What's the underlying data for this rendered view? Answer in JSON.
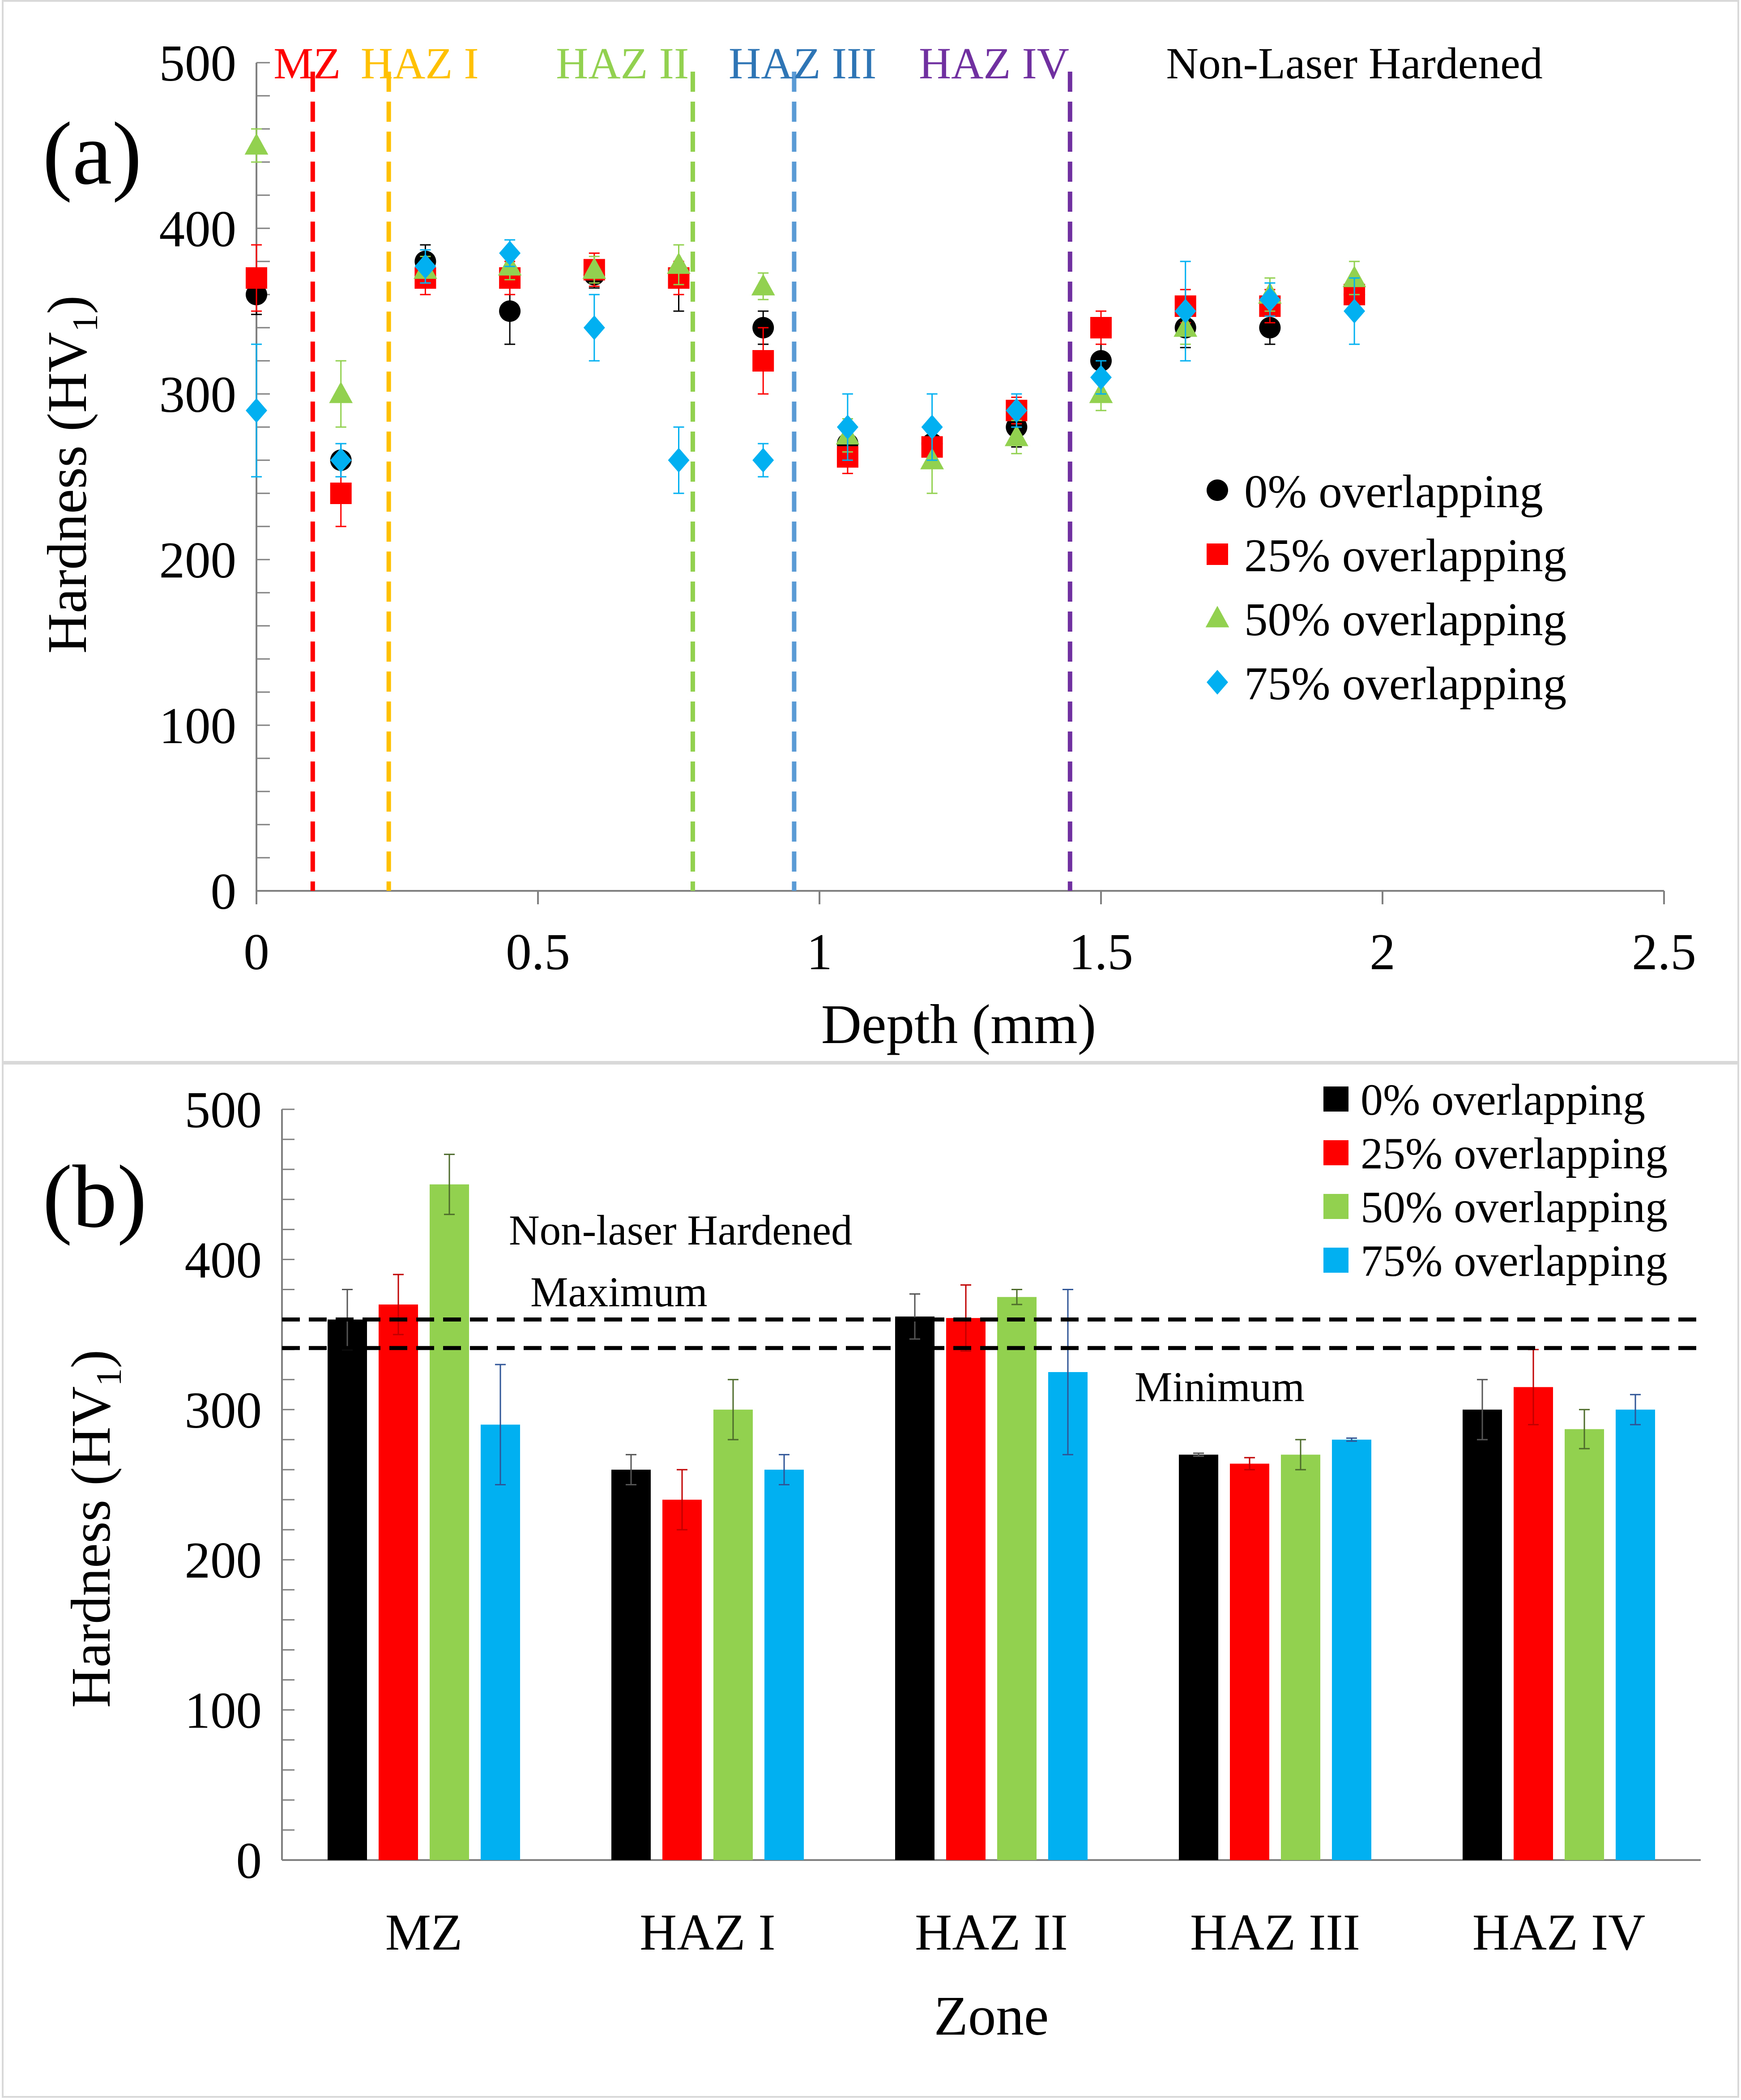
{
  "figure": {
    "panel_a_label": "(a)",
    "panel_b_label": "(b)"
  },
  "chart_data": [
    {
      "type": "scatter",
      "panel": "(a)",
      "title": "",
      "xlabel": "Depth (mm)",
      "ylabel": "Hardness (HV",
      "ylabel_sub": "1",
      "ylabel_close": ")",
      "xlim": [
        0,
        2.5
      ],
      "ylim": [
        0,
        500
      ],
      "xticks": [
        0,
        0.5,
        1,
        1.5,
        2,
        2.5
      ],
      "xtick_labels": [
        "0",
        "0.5",
        "1",
        "1.5",
        "2",
        "2.5"
      ],
      "yticks": [
        0,
        100,
        200,
        300,
        400,
        500
      ],
      "ytick_labels": [
        "0",
        "100",
        "200",
        "300",
        "400",
        "500"
      ],
      "grid": false,
      "legend_position": "right-middle",
      "zone_boundaries": [
        {
          "label": "MZ",
          "x": 0.1,
          "color": "#ff0000"
        },
        {
          "label": "HAZ I",
          "x": 0.235,
          "color": "#ffc000"
        },
        {
          "label": "HAZ II",
          "x": 0.775,
          "color": "#92d050"
        },
        {
          "label": "HAZ III",
          "x": 0.955,
          "color": "#5b9bd5"
        },
        {
          "label": "HAZ IV",
          "x": 1.445,
          "color": "#7030a0"
        }
      ],
      "zone_labels": [
        {
          "text": "MZ",
          "color": "#ff0000",
          "x": 0.09
        },
        {
          "text": "HAZ I",
          "color": "#ffc000",
          "x": 0.29
        },
        {
          "text": "HAZ II",
          "color": "#92d050",
          "x": 0.65
        },
        {
          "text": "HAZ III",
          "color": "#2e75b6",
          "x": 0.97
        },
        {
          "text": "HAZ IV",
          "color": "#7030a0",
          "x": 1.31
        },
        {
          "text": "Non-Laser Hardened",
          "color": "#000000",
          "x": 1.95
        }
      ],
      "series": [
        {
          "name": "0% overlapping",
          "marker": "circle",
          "color": "#000000",
          "x": [
            0,
            0.15,
            0.3,
            0.45,
            0.6,
            0.75,
            0.9,
            1.05,
            1.2,
            1.35,
            1.5,
            1.65,
            1.8,
            1.95
          ],
          "y": [
            360,
            260,
            380,
            350,
            372,
            370,
            340,
            270,
            270,
            280,
            320,
            340,
            340,
            360
          ],
          "err": [
            12,
            10,
            10,
            20,
            8,
            20,
            10,
            10,
            10,
            12,
            10,
            12,
            10,
            10
          ]
        },
        {
          "name": "25% overlapping",
          "marker": "square",
          "color": "#ff0000",
          "x": [
            0,
            0.15,
            0.3,
            0.45,
            0.6,
            0.75,
            0.9,
            1.05,
            1.2,
            1.35,
            1.5,
            1.65,
            1.8,
            1.95
          ],
          "y": [
            370,
            240,
            370,
            370,
            375,
            370,
            320,
            262,
            268,
            290,
            340,
            353,
            353,
            360
          ],
          "err": [
            20,
            20,
            10,
            10,
            10,
            10,
            20,
            10,
            10,
            8,
            10,
            10,
            10,
            10
          ]
        },
        {
          "name": "50% overlapping",
          "marker": "triangle",
          "color": "#92d050",
          "x": [
            0,
            0.15,
            0.3,
            0.45,
            0.6,
            0.75,
            0.9,
            1.05,
            1.2,
            1.35,
            1.5,
            1.65,
            1.8,
            1.95
          ],
          "y": [
            450,
            300,
            375,
            377,
            375,
            378,
            365,
            275,
            260,
            274,
            300,
            340,
            360,
            370
          ],
          "err": [
            10,
            20,
            8,
            8,
            8,
            12,
            8,
            10,
            20,
            10,
            10,
            10,
            10,
            10
          ]
        },
        {
          "name": "75% overlapping",
          "marker": "diamond",
          "color": "#00b0f0",
          "x": [
            0,
            0.15,
            0.3,
            0.45,
            0.6,
            0.75,
            0.9,
            1.05,
            1.2,
            1.35,
            1.5,
            1.65,
            1.8,
            1.95
          ],
          "y": [
            290,
            260,
            377,
            385,
            340,
            260,
            260,
            280,
            280,
            290,
            310,
            350,
            357,
            350
          ],
          "err": [
            40,
            10,
            10,
            8,
            20,
            20,
            10,
            20,
            20,
            10,
            10,
            30,
            10,
            20
          ]
        }
      ]
    },
    {
      "type": "bar",
      "panel": "(b)",
      "title": "",
      "xlabel": "Zone",
      "ylabel": "Hardness (HV",
      "ylabel_sub": "1",
      "ylabel_close": ")",
      "ylim": [
        0,
        500
      ],
      "yticks": [
        0,
        100,
        200,
        300,
        400,
        500
      ],
      "ytick_labels": [
        "0",
        "100",
        "200",
        "300",
        "400",
        "500"
      ],
      "categories": [
        "MZ",
        "HAZ I",
        "HAZ II",
        "HAZ III",
        "HAZ IV"
      ],
      "grid": false,
      "legend_position": "top-right",
      "reference_lines": [
        {
          "value": 360,
          "style": "dashed"
        },
        {
          "value": 341,
          "style": "dashed"
        }
      ],
      "annotations": [
        "Non-laser Hardened",
        "Maximum",
        "Minimum"
      ],
      "series": [
        {
          "name": "0% overlapping",
          "color": "#000000",
          "values": [
            360,
            260,
            362,
            270,
            300
          ],
          "err": [
            20,
            10,
            15,
            1,
            20
          ]
        },
        {
          "name": "25% overlapping",
          "color": "#ff0000",
          "values": [
            370,
            240,
            361,
            264,
            315
          ],
          "err": [
            20,
            20,
            22,
            4,
            25
          ]
        },
        {
          "name": "50% overlapping",
          "color": "#92d050",
          "values": [
            450,
            300,
            375,
            270,
            287
          ],
          "err": [
            20,
            20,
            5,
            10,
            13
          ]
        },
        {
          "name": "75% overlapping",
          "color": "#00b0f0",
          "values": [
            290,
            260,
            325,
            280,
            300
          ],
          "err": [
            40,
            10,
            55,
            1,
            10
          ]
        }
      ]
    }
  ]
}
